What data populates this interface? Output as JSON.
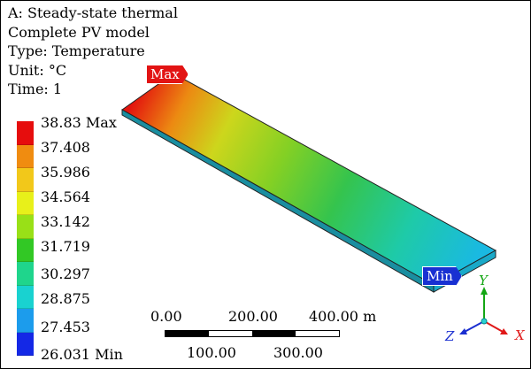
{
  "header": {
    "analysis": "A: Steady-state thermal",
    "model": "Complete PV model",
    "type": "Type: Temperature",
    "unit": "Unit: °C",
    "time": "Time: 1"
  },
  "legend": {
    "labels": [
      "38.83 Max",
      "37.408",
      "35.986",
      "34.564",
      "33.142",
      "31.719",
      "30.297",
      "28.875",
      "27.453",
      "26.031 Min"
    ],
    "colors": [
      "#e60d0d",
      "#f08c10",
      "#f2c81a",
      "#e8f01a",
      "#99e017",
      "#32c825",
      "#1fd58c",
      "#19d2d0",
      "#1c9cec",
      "#1428e6"
    ]
  },
  "markers": {
    "max_label": "Max",
    "min_label": "Min",
    "max_color": "#e21414",
    "min_color": "#1830d2"
  },
  "scale_bar": {
    "top_labels": [
      "0.00",
      "200.00",
      "400.00 m"
    ],
    "bottom_labels": [
      "100.00",
      "300.00"
    ]
  },
  "triad": {
    "x_label": "X",
    "y_label": "Y",
    "z_label": "Z",
    "x_color": "#e01818",
    "y_color": "#14a614",
    "z_color": "#1a2ed0"
  }
}
